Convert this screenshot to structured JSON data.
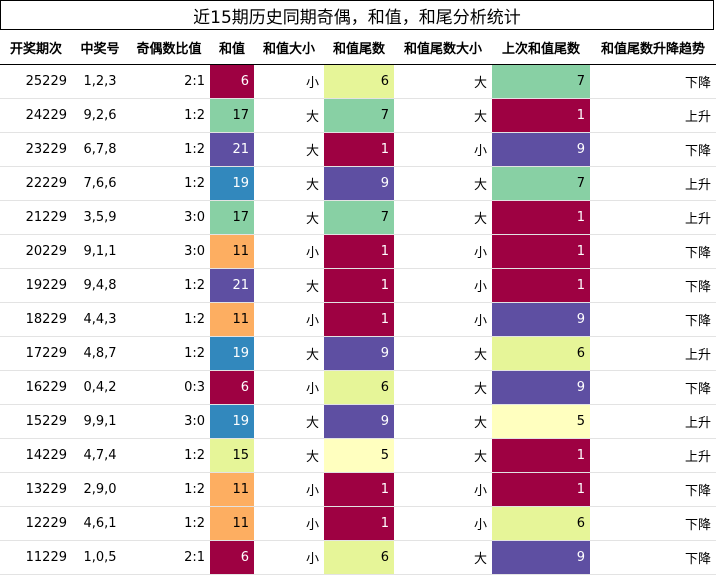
{
  "title": "近15期历史同期奇偶，和值，和尾分析统计",
  "headers": [
    "开奖期次",
    "中奖号",
    "奇偶数比值",
    "和值",
    "和值大小",
    "和值尾数",
    "和值尾数大小",
    "上次和值尾数",
    "和值尾数升降趋势"
  ],
  "colors": {
    "value_1": "#9e0142",
    "value_5": "#ffffbf",
    "value_6": "#e6f598",
    "value_7": "#88d0a4",
    "value_9": "#5e4fa2",
    "sum_6": "#9e0142",
    "sum_11": "#fdae61",
    "sum_15": "#e6f598",
    "sum_17": "#88d0a4",
    "sum_19": "#3288bd",
    "sum_21": "#5e4fa2"
  },
  "rows": [
    {
      "period": "25229",
      "numbers": "1,2,3",
      "odd_even": "2:1",
      "sum": "6",
      "sum_size": "小",
      "tail": "6",
      "tail_size": "大",
      "prev_tail": "7",
      "trend": "下降"
    },
    {
      "period": "24229",
      "numbers": "9,2,6",
      "odd_even": "1:2",
      "sum": "17",
      "sum_size": "大",
      "tail": "7",
      "tail_size": "大",
      "prev_tail": "1",
      "trend": "上升"
    },
    {
      "period": "23229",
      "numbers": "6,7,8",
      "odd_even": "1:2",
      "sum": "21",
      "sum_size": "大",
      "tail": "1",
      "tail_size": "小",
      "prev_tail": "9",
      "trend": "下降"
    },
    {
      "period": "22229",
      "numbers": "7,6,6",
      "odd_even": "1:2",
      "sum": "19",
      "sum_size": "大",
      "tail": "9",
      "tail_size": "大",
      "prev_tail": "7",
      "trend": "上升"
    },
    {
      "period": "21229",
      "numbers": "3,5,9",
      "odd_even": "3:0",
      "sum": "17",
      "sum_size": "大",
      "tail": "7",
      "tail_size": "大",
      "prev_tail": "1",
      "trend": "上升"
    },
    {
      "period": "20229",
      "numbers": "9,1,1",
      "odd_even": "3:0",
      "sum": "11",
      "sum_size": "小",
      "tail": "1",
      "tail_size": "小",
      "prev_tail": "1",
      "trend": "下降"
    },
    {
      "period": "19229",
      "numbers": "9,4,8",
      "odd_even": "1:2",
      "sum": "21",
      "sum_size": "大",
      "tail": "1",
      "tail_size": "小",
      "prev_tail": "1",
      "trend": "下降"
    },
    {
      "period": "18229",
      "numbers": "4,4,3",
      "odd_even": "1:2",
      "sum": "11",
      "sum_size": "小",
      "tail": "1",
      "tail_size": "小",
      "prev_tail": "9",
      "trend": "下降"
    },
    {
      "period": "17229",
      "numbers": "4,8,7",
      "odd_even": "1:2",
      "sum": "19",
      "sum_size": "大",
      "tail": "9",
      "tail_size": "大",
      "prev_tail": "6",
      "trend": "上升"
    },
    {
      "period": "16229",
      "numbers": "0,4,2",
      "odd_even": "0:3",
      "sum": "6",
      "sum_size": "小",
      "tail": "6",
      "tail_size": "大",
      "prev_tail": "9",
      "trend": "下降"
    },
    {
      "period": "15229",
      "numbers": "9,9,1",
      "odd_even": "3:0",
      "sum": "19",
      "sum_size": "大",
      "tail": "9",
      "tail_size": "大",
      "prev_tail": "5",
      "trend": "上升"
    },
    {
      "period": "14229",
      "numbers": "4,7,4",
      "odd_even": "1:2",
      "sum": "15",
      "sum_size": "大",
      "tail": "5",
      "tail_size": "大",
      "prev_tail": "1",
      "trend": "上升"
    },
    {
      "period": "13229",
      "numbers": "2,9,0",
      "odd_even": "1:2",
      "sum": "11",
      "sum_size": "小",
      "tail": "1",
      "tail_size": "小",
      "prev_tail": "1",
      "trend": "下降"
    },
    {
      "period": "12229",
      "numbers": "4,6,1",
      "odd_even": "1:2",
      "sum": "11",
      "sum_size": "小",
      "tail": "1",
      "tail_size": "小",
      "prev_tail": "6",
      "trend": "下降"
    },
    {
      "period": "11229",
      "numbers": "1,0,5",
      "odd_even": "2:1",
      "sum": "6",
      "sum_size": "小",
      "tail": "6",
      "tail_size": "大",
      "prev_tail": "9",
      "trend": "下降"
    }
  ]
}
